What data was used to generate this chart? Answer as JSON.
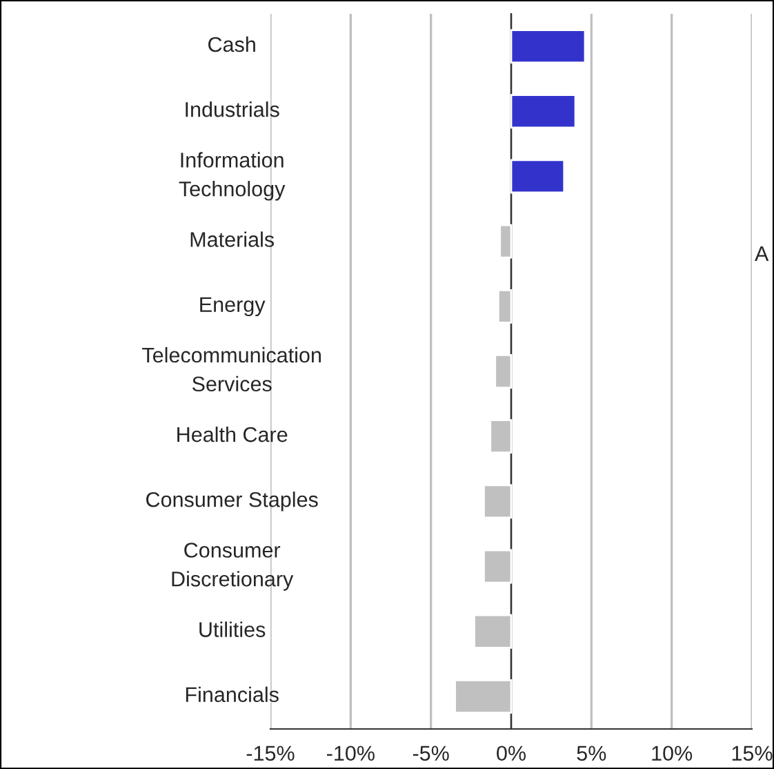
{
  "chart_data": {
    "type": "bar",
    "orientation": "horizontal",
    "categories": [
      "Cash",
      "Industrials",
      "Information\nTechnology",
      "Materials",
      "Energy",
      "Telecommunication\nServices",
      "Health Care",
      "Consumer Staples",
      "Consumer\nDiscretionary",
      "Utilities",
      "Financials"
    ],
    "values": [
      4.6,
      4.0,
      3.3,
      -0.7,
      -0.8,
      -1.0,
      -1.3,
      -1.7,
      -1.7,
      -2.3,
      -3.5
    ],
    "colors": [
      "#3333cc",
      "#3333cc",
      "#3333cc",
      "#c0c0c0",
      "#c0c0c0",
      "#c0c0c0",
      "#c0c0c0",
      "#c0c0c0",
      "#c0c0c0",
      "#c0c0c0",
      "#c0c0c0"
    ],
    "xlim": [
      -15,
      15
    ],
    "xticks": [
      {
        "value": -15,
        "label": "-15%"
      },
      {
        "value": -10,
        "label": "-10%"
      },
      {
        "value": -5,
        "label": "-5%"
      },
      {
        "value": 0,
        "label": "0%"
      },
      {
        "value": 5,
        "label": "5%"
      },
      {
        "value": 10,
        "label": "10%"
      },
      {
        "value": 15,
        "label": "15%"
      }
    ],
    "grid": "x",
    "annotations": [
      "A"
    ]
  }
}
